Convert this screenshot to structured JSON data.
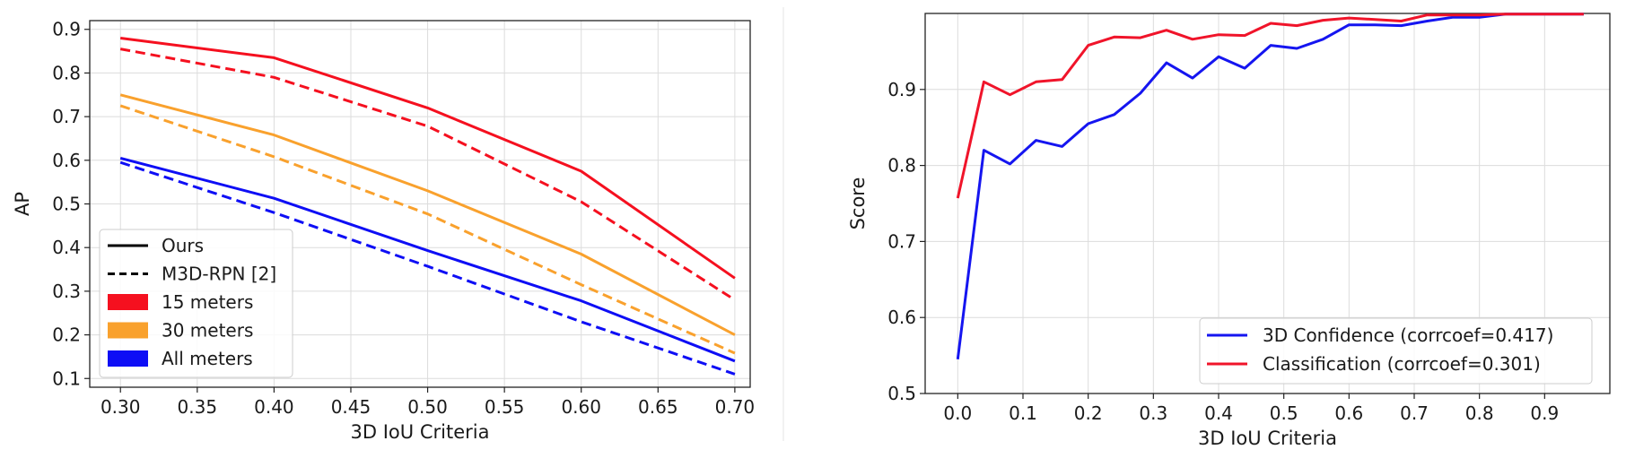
{
  "chart_data": [
    {
      "type": "line",
      "xlabel": "3D IoU Criteria",
      "ylabel": "AP",
      "x": [
        0.3,
        0.4,
        0.5,
        0.6,
        0.7
      ],
      "xlim": [
        0.28,
        0.71
      ],
      "ylim": [
        0.08,
        0.92
      ],
      "xticks": [
        "0.30",
        "0.35",
        "0.40",
        "0.45",
        "0.50",
        "0.55",
        "0.60",
        "0.65",
        "0.70"
      ],
      "yticks": [
        "0.1",
        "0.2",
        "0.3",
        "0.4",
        "0.5",
        "0.6",
        "0.7",
        "0.8",
        "0.9"
      ],
      "grid": true,
      "legend_position": "lower-left",
      "legend": [
        {
          "label": "Ours",
          "kind": "line",
          "style": "solid",
          "color": "#000000"
        },
        {
          "label": "M3D-RPN [2]",
          "kind": "line",
          "style": "dashed",
          "color": "#000000"
        },
        {
          "label": "15 meters",
          "kind": "patch",
          "color": "#f5101f"
        },
        {
          "label": "30 meters",
          "kind": "patch",
          "color": "#f9a12d"
        },
        {
          "label": "All meters",
          "kind": "patch",
          "color": "#0e0ef5"
        }
      ],
      "series": [
        {
          "group": "15 meters",
          "method": "Ours",
          "style": "solid",
          "color": "#f5101f",
          "values": [
            0.88,
            0.835,
            0.72,
            0.575,
            0.33
          ]
        },
        {
          "group": "15 meters",
          "method": "M3D-RPN [2]",
          "style": "dashed",
          "color": "#f5101f",
          "values": [
            0.855,
            0.79,
            0.678,
            0.505,
            0.28
          ]
        },
        {
          "group": "30 meters",
          "method": "Ours",
          "style": "solid",
          "color": "#f9a12d",
          "values": [
            0.75,
            0.658,
            0.53,
            0.385,
            0.2
          ]
        },
        {
          "group": "30 meters",
          "method": "M3D-RPN [2]",
          "style": "dashed",
          "color": "#f9a12d",
          "values": [
            0.725,
            0.608,
            0.477,
            0.315,
            0.158
          ]
        },
        {
          "group": "All meters",
          "method": "Ours",
          "style": "solid",
          "color": "#0e0ef5",
          "values": [
            0.605,
            0.513,
            0.393,
            0.278,
            0.14
          ]
        },
        {
          "group": "All meters",
          "method": "M3D-RPN [2]",
          "style": "dashed",
          "color": "#0e0ef5",
          "values": [
            0.595,
            0.48,
            0.357,
            0.23,
            0.11
          ]
        }
      ]
    },
    {
      "type": "line",
      "xlabel": "3D IoU Criteria",
      "ylabel": "Score",
      "x": [
        0.0,
        0.04,
        0.08,
        0.12,
        0.16,
        0.2,
        0.24,
        0.28,
        0.32,
        0.36,
        0.4,
        0.44,
        0.48,
        0.52,
        0.56,
        0.6,
        0.64,
        0.68,
        0.72,
        0.76,
        0.8,
        0.84,
        0.88,
        0.92,
        0.96
      ],
      "xlim": [
        -0.05,
        1.0
      ],
      "ylim": [
        0.5,
        1.0
      ],
      "xticks": [
        "0.0",
        "0.1",
        "0.2",
        "0.3",
        "0.4",
        "0.5",
        "0.6",
        "0.7",
        "0.8",
        "0.9"
      ],
      "yticks": [
        "0.5",
        "0.6",
        "0.7",
        "0.8",
        "0.9"
      ],
      "grid": true,
      "legend_position": "lower-right",
      "series": [
        {
          "name": "3D Confidence (corrcoef=0.417)",
          "color": "#1515f0",
          "values": [
            0.545,
            0.82,
            0.802,
            0.833,
            0.825,
            0.855,
            0.867,
            0.895,
            0.935,
            0.915,
            0.943,
            0.928,
            0.958,
            0.954,
            0.966,
            0.985,
            0.985,
            0.984,
            0.99,
            0.995,
            0.995,
            0.999,
            0.999,
            0.999,
            0.999
          ]
        },
        {
          "name": "Classification (corrcoef=0.301)",
          "color": "#f0142a",
          "values": [
            0.757,
            0.91,
            0.893,
            0.91,
            0.913,
            0.958,
            0.969,
            0.968,
            0.978,
            0.966,
            0.972,
            0.971,
            0.987,
            0.984,
            0.991,
            0.994,
            0.992,
            0.99,
            0.998,
            0.998,
            0.998,
            0.999,
            0.999,
            0.999,
            0.999
          ]
        }
      ]
    }
  ]
}
